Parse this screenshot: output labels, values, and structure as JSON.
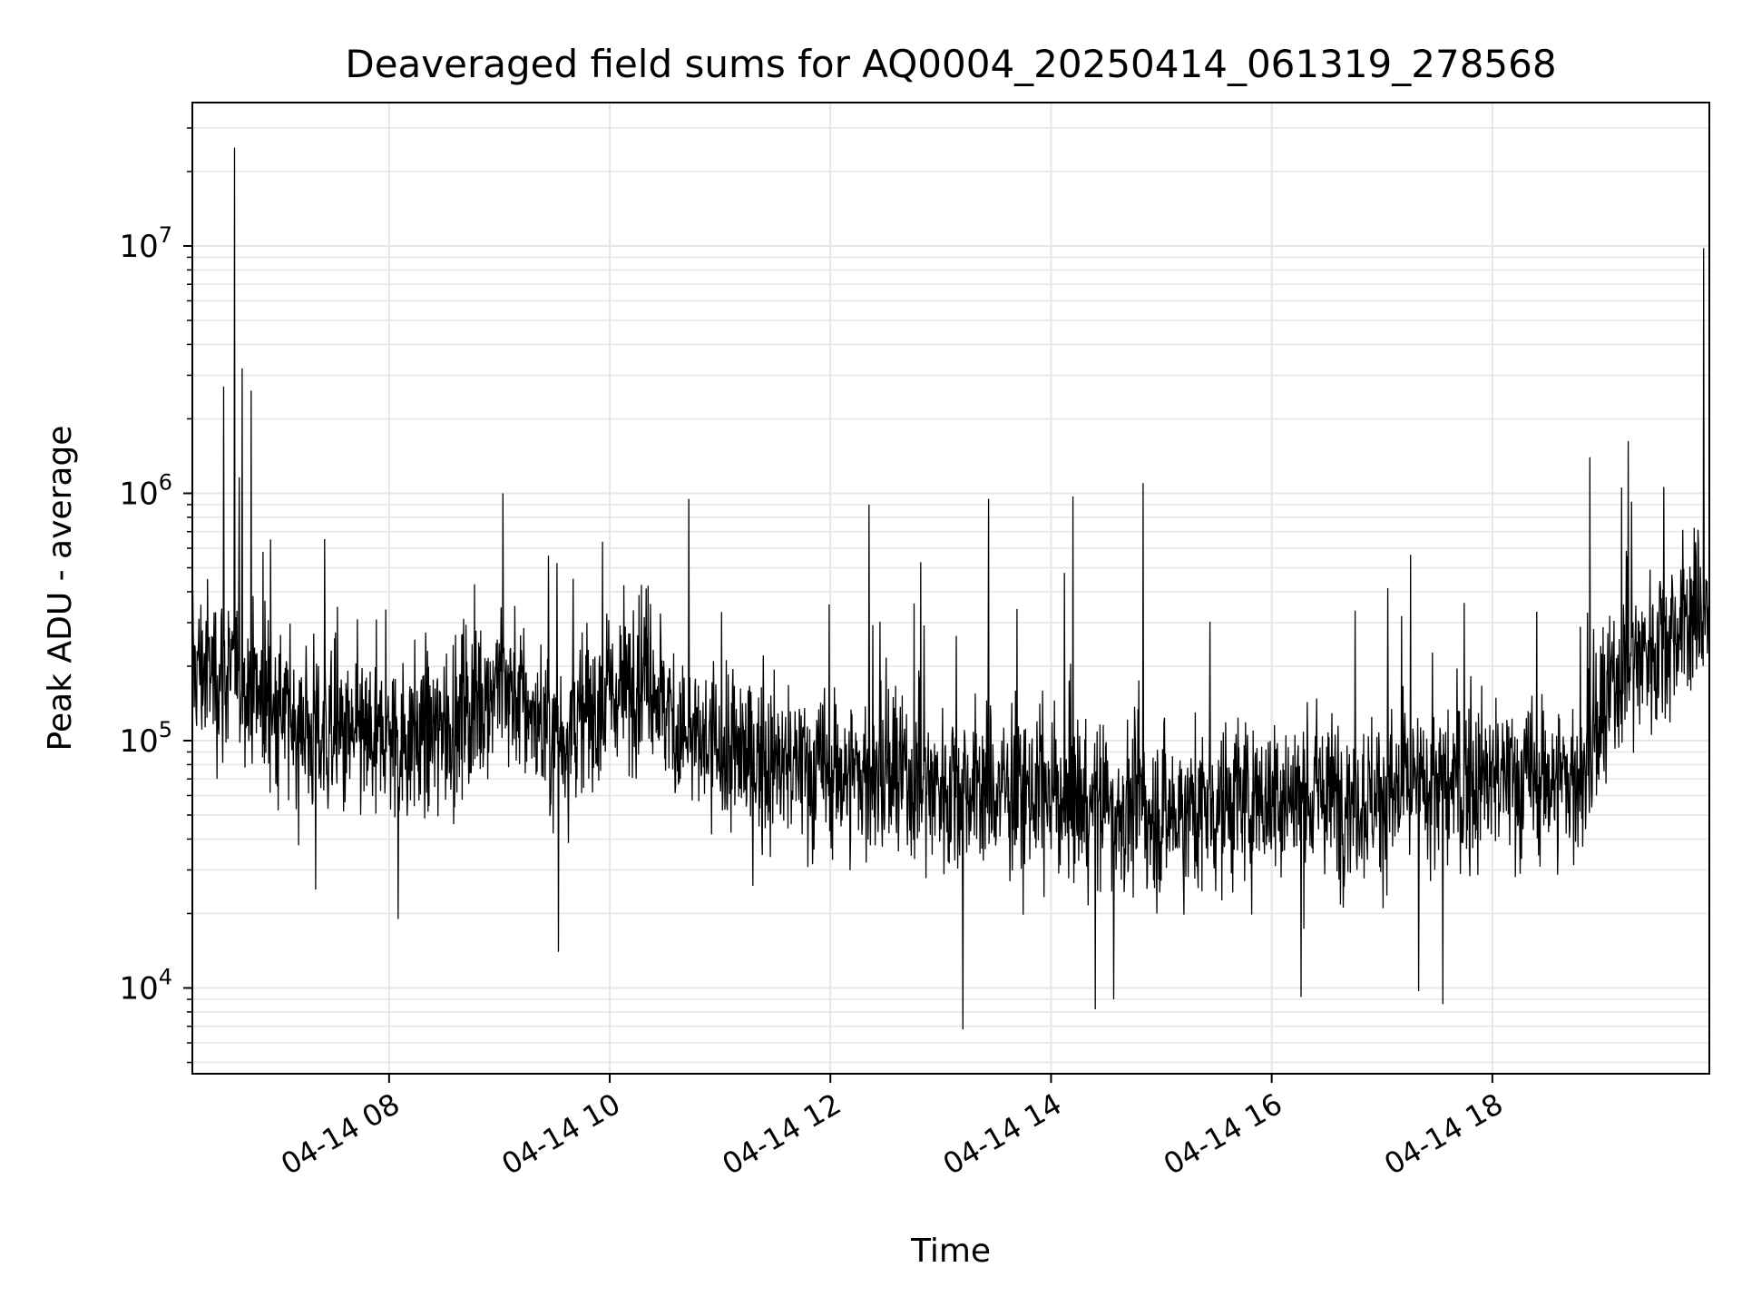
{
  "figure": {
    "title": "Deaveraged field sums for AQ0004_20250414_061319_278568",
    "xlabel": "Time",
    "ylabel": "Peak ADU - average"
  },
  "chart_data": {
    "type": "line",
    "title": "Deaveraged field sums for AQ0004_20250414_061319_278568",
    "xlabel": "Time",
    "ylabel": "Peak ADU - average",
    "yscale": "log",
    "grid": true,
    "legend": "none",
    "line_color": "#000000",
    "xlim": [
      "2025-04-14T06:13",
      "2025-04-14T19:58"
    ],
    "ylim": [
      4500,
      38000000
    ],
    "x_ticks": [
      {
        "t": "2025-04-14T08:00",
        "label": "04-14 08"
      },
      {
        "t": "2025-04-14T10:00",
        "label": "04-14 10"
      },
      {
        "t": "2025-04-14T12:00",
        "label": "04-14 12"
      },
      {
        "t": "2025-04-14T14:00",
        "label": "04-14 14"
      },
      {
        "t": "2025-04-14T16:00",
        "label": "04-14 16"
      },
      {
        "t": "2025-04-14T18:00",
        "label": "04-14 18"
      }
    ],
    "y_ticks": [
      {
        "value": 10000,
        "exponent": "4"
      },
      {
        "value": 100000,
        "exponent": "5"
      },
      {
        "value": 1000000,
        "exponent": "6"
      },
      {
        "value": 10000000,
        "exponent": "7"
      }
    ],
    "baseline": [
      {
        "t": "2025-04-14T06:13",
        "y": 200000
      },
      {
        "t": "2025-04-14T06:40",
        "y": 180000
      },
      {
        "t": "2025-04-14T07:00",
        "y": 130000
      },
      {
        "t": "2025-04-14T07:30",
        "y": 100000
      },
      {
        "t": "2025-04-14T08:00",
        "y": 100000
      },
      {
        "t": "2025-04-14T08:30",
        "y": 110000
      },
      {
        "t": "2025-04-14T09:00",
        "y": 180000
      },
      {
        "t": "2025-04-14T09:30",
        "y": 100000
      },
      {
        "t": "2025-04-14T10:00",
        "y": 150000
      },
      {
        "t": "2025-04-14T10:20",
        "y": 200000
      },
      {
        "t": "2025-04-14T10:40",
        "y": 100000
      },
      {
        "t": "2025-04-14T11:30",
        "y": 80000
      },
      {
        "t": "2025-04-14T12:30",
        "y": 70000
      },
      {
        "t": "2025-04-14T14:00",
        "y": 60000
      },
      {
        "t": "2025-04-14T15:00",
        "y": 50000
      },
      {
        "t": "2025-04-14T16:00",
        "y": 60000
      },
      {
        "t": "2025-04-14T17:00",
        "y": 60000
      },
      {
        "t": "2025-04-14T18:00",
        "y": 70000
      },
      {
        "t": "2025-04-14T18:50",
        "y": 70000
      },
      {
        "t": "2025-04-14T19:10",
        "y": 200000
      },
      {
        "t": "2025-04-14T19:58",
        "y": 350000
      }
    ],
    "peaks": [
      {
        "t": "2025-04-14T06:36",
        "y": 25000000
      },
      {
        "t": "2025-04-14T06:30",
        "y": 2700000
      },
      {
        "t": "2025-04-14T06:40",
        "y": 3200000
      },
      {
        "t": "2025-04-14T06:45",
        "y": 2600000
      },
      {
        "t": "2025-04-14T09:02",
        "y": 1000000
      },
      {
        "t": "2025-04-14T12:21",
        "y": 900000
      },
      {
        "t": "2025-04-14T10:43",
        "y": 950000
      },
      {
        "t": "2025-04-14T13:26",
        "y": 950000
      },
      {
        "t": "2025-04-14T14:12",
        "y": 970000
      },
      {
        "t": "2025-04-14T14:50",
        "y": 1100000
      },
      {
        "t": "2025-04-14T18:53",
        "y": 1400000
      },
      {
        "t": "2025-04-14T19:55",
        "y": 9800000
      }
    ],
    "troughs": [
      {
        "t": "2025-04-14T07:20",
        "y": 25000
      },
      {
        "t": "2025-04-14T08:05",
        "y": 19000
      },
      {
        "t": "2025-04-14T09:32",
        "y": 14000
      },
      {
        "t": "2025-04-14T13:12",
        "y": 6800
      },
      {
        "t": "2025-04-14T14:24",
        "y": 8200
      },
      {
        "t": "2025-04-14T14:34",
        "y": 9000
      },
      {
        "t": "2025-04-14T16:16",
        "y": 9200
      },
      {
        "t": "2025-04-14T17:20",
        "y": 9700
      },
      {
        "t": "2025-04-14T17:33",
        "y": 8600
      }
    ]
  }
}
